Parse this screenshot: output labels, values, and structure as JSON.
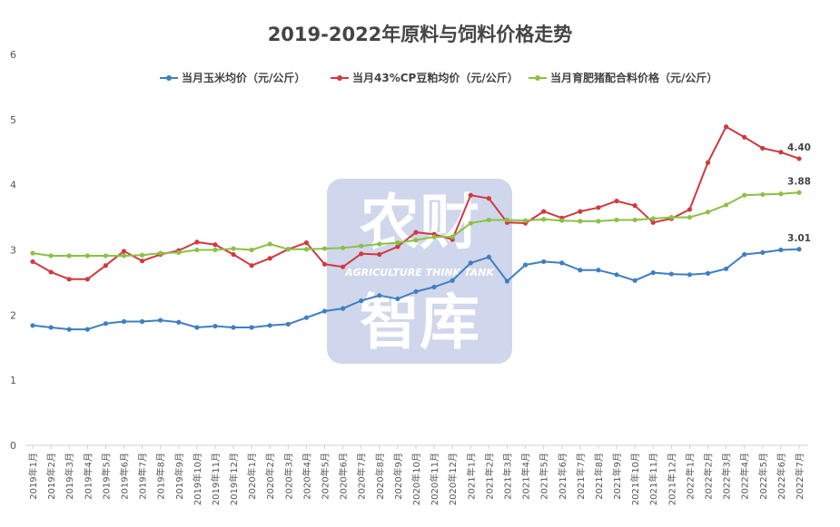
{
  "chart_data": {
    "type": "line",
    "title": "2019-2022年原料与饲料价格走势",
    "xlabel": "",
    "ylabel": "",
    "ylim": [
      0,
      6
    ],
    "yticks": [
      0,
      1,
      2,
      3,
      4,
      5,
      6
    ],
    "grid": false,
    "legend_position": "top",
    "categories": [
      "2019年1月",
      "2019年2月",
      "2019年3月",
      "2019年4月",
      "2019年5月",
      "2019年6月",
      "2019年7月",
      "2019年8月",
      "2019年9月",
      "2019年10月",
      "2019年11月",
      "2019年12月",
      "2020年1月",
      "2020年2月",
      "2020年3月",
      "2020年4月",
      "2020年5月",
      "2020年6月",
      "2020年7月",
      "2020年8月",
      "2020年9月",
      "2020年10月",
      "2020年11月",
      "2020年12月",
      "2021年1月",
      "2021年2月",
      "2021年3月",
      "2021年4月",
      "2021年5月",
      "2021年6月",
      "2021年7月",
      "2021年8月",
      "2021年9月",
      "2021年10月",
      "2021年11月",
      "2021年12月",
      "2022年1月",
      "2022年2月",
      "2022年3月",
      "2022年4月",
      "2022年5月",
      "2022年6月",
      "2022年7月"
    ],
    "series": [
      {
        "name": "当月玉米均价（元/公斤）",
        "color": "#3f7fc1",
        "values": [
          1.84,
          1.81,
          1.78,
          1.78,
          1.87,
          1.9,
          1.9,
          1.92,
          1.89,
          1.81,
          1.83,
          1.81,
          1.81,
          1.84,
          1.86,
          1.96,
          2.06,
          2.1,
          2.22,
          2.3,
          2.25,
          2.36,
          2.43,
          2.53,
          2.8,
          2.89,
          2.52,
          2.77,
          2.82,
          2.8,
          2.69,
          2.69,
          2.62,
          2.53,
          2.65,
          2.63,
          2.62,
          2.64,
          2.71,
          2.93,
          2.96,
          3.0,
          3.01
        ],
        "end_label": "3.01"
      },
      {
        "name": "当月43%CP豆粕均价（元/公斤）",
        "color": "#d0393f",
        "values": [
          2.82,
          2.66,
          2.55,
          2.55,
          2.76,
          2.98,
          2.83,
          2.93,
          2.99,
          3.12,
          3.08,
          2.93,
          2.76,
          2.87,
          3.01,
          3.11,
          2.78,
          2.74,
          2.94,
          2.93,
          3.05,
          3.27,
          3.24,
          3.16,
          3.84,
          3.79,
          3.42,
          3.41,
          3.59,
          3.49,
          3.59,
          3.65,
          3.75,
          3.68,
          3.42,
          3.48,
          3.62,
          4.34,
          4.89,
          4.73,
          4.56,
          4.5,
          4.4
        ],
        "end_label": "4.40"
      },
      {
        "name": "当月育肥猪配合料价格（元/公斤）",
        "color": "#8cc044",
        "values": [
          2.95,
          2.91,
          2.91,
          2.91,
          2.91,
          2.91,
          2.92,
          2.95,
          2.96,
          3.0,
          3.0,
          3.02,
          3.0,
          3.09,
          3.01,
          3.01,
          3.02,
          3.03,
          3.06,
          3.09,
          3.11,
          3.15,
          3.2,
          3.2,
          3.41,
          3.46,
          3.46,
          3.45,
          3.47,
          3.45,
          3.44,
          3.44,
          3.46,
          3.46,
          3.48,
          3.5,
          3.5,
          3.58,
          3.69,
          3.84,
          3.85,
          3.86,
          3.88
        ],
        "end_label": "3.88"
      }
    ]
  },
  "watermark": {
    "line1": "农财",
    "line2": "AGRICULTURE THINK TANK",
    "line3": "智库",
    "color": "#aab7dd"
  }
}
